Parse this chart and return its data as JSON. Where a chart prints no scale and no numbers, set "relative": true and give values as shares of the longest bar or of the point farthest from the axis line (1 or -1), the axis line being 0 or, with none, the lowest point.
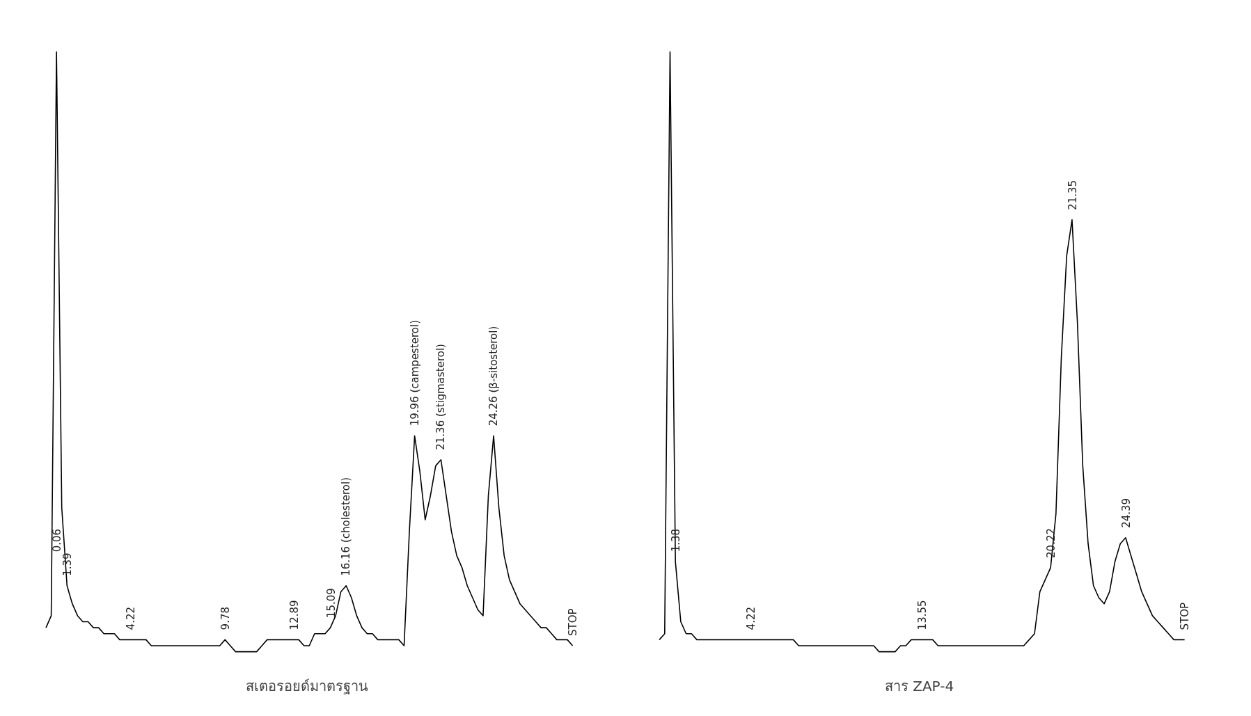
{
  "chart_data": [
    {
      "type": "line",
      "relative": true,
      "xlabel": "สเตอรอยด์มาตรฐาน",
      "annotations": [
        "0.06",
        "1.39",
        "4.22",
        "9.78",
        "12.89",
        "15.09",
        "16.16 (cholesterol)",
        "19.96 (campesterol)",
        "21.36 (stigmasterol)",
        "24.26 (β-sitosterol)",
        "STOP"
      ],
      "categories": [
        null,
        null,
        null,
        null,
        null,
        null,
        null,
        null,
        null,
        null,
        null,
        null,
        null,
        null,
        null,
        null,
        null,
        null,
        null,
        null,
        null,
        null,
        null,
        null,
        null,
        null,
        null,
        null,
        null,
        null,
        null,
        null,
        null,
        null,
        null,
        null,
        null,
        null,
        null,
        null,
        null,
        null,
        null,
        null,
        null,
        null,
        null,
        null,
        null,
        null,
        null,
        null,
        null,
        null,
        null,
        null,
        null,
        null,
        null,
        null,
        null,
        null,
        null,
        null,
        null,
        null,
        null,
        null,
        null,
        null,
        null,
        null,
        null,
        null,
        null,
        null,
        null,
        null,
        null,
        null,
        null,
        null,
        null,
        null,
        null,
        null,
        null,
        null,
        null,
        null,
        null,
        null,
        null,
        null,
        null,
        null,
        null,
        null,
        null,
        null,
        null
      ],
      "series": [
        {
          "color": "#000000",
          "values": [
            0.04,
            0.06,
            1.0,
            0.24,
            0.11,
            0.08,
            0.06,
            0.05,
            0.05,
            0.04,
            0.04,
            0.03,
            0.03,
            0.03,
            0.02,
            0.02,
            0.02,
            0.02,
            0.02,
            0.02,
            0.01,
            0.01,
            0.01,
            0.01,
            0.01,
            0.01,
            0.01,
            0.01,
            0.01,
            0.01,
            0.01,
            0.01,
            0.01,
            0.01,
            0.02,
            0.01,
            0.0,
            0.0,
            0.0,
            0.0,
            0.0,
            0.01,
            0.02,
            0.02,
            0.02,
            0.02,
            0.02,
            0.02,
            0.02,
            0.01,
            0.01,
            0.03,
            0.03,
            0.03,
            0.04,
            0.06,
            0.1,
            0.11,
            0.09,
            0.06,
            0.04,
            0.03,
            0.03,
            0.02,
            0.02,
            0.02,
            0.02,
            0.02,
            0.01,
            0.2,
            0.36,
            0.3,
            0.22,
            0.26,
            0.31,
            0.32,
            0.26,
            0.2,
            0.16,
            0.14,
            0.11,
            0.09,
            0.07,
            0.06,
            0.26,
            0.36,
            0.24,
            0.16,
            0.12,
            0.1,
            0.08,
            0.07,
            0.06,
            0.05,
            0.04,
            0.04,
            0.03,
            0.02,
            0.02,
            0.02,
            0.01
          ],
          "marker": "none"
        }
      ]
    },
    {
      "type": "line",
      "relative": true,
      "xlabel": "สาร ZAP-4",
      "annotations": [
        "1.38",
        "4.22",
        "13.55",
        "20.22",
        "21.35",
        "24.39",
        "STOP"
      ],
      "categories": [
        null,
        null,
        null,
        null,
        null,
        null,
        null,
        null,
        null,
        null,
        null,
        null,
        null,
        null,
        null,
        null,
        null,
        null,
        null,
        null,
        null,
        null,
        null,
        null,
        null,
        null,
        null,
        null,
        null,
        null,
        null,
        null,
        null,
        null,
        null,
        null,
        null,
        null,
        null,
        null,
        null,
        null,
        null,
        null,
        null,
        null,
        null,
        null,
        null,
        null,
        null,
        null,
        null,
        null,
        null,
        null,
        null,
        null,
        null,
        null,
        null,
        null,
        null,
        null,
        null,
        null,
        null,
        null,
        null,
        null,
        null,
        null,
        null,
        null,
        null,
        null,
        null,
        null,
        null,
        null,
        null,
        null,
        null,
        null,
        null,
        null,
        null,
        null,
        null,
        null,
        null,
        null,
        null,
        null,
        null,
        null,
        null,
        null,
        null
      ],
      "series": [
        {
          "color": "#000000",
          "values": [
            0.02,
            0.03,
            1.0,
            0.15,
            0.05,
            0.03,
            0.03,
            0.02,
            0.02,
            0.02,
            0.02,
            0.02,
            0.02,
            0.02,
            0.02,
            0.02,
            0.02,
            0.02,
            0.02,
            0.02,
            0.02,
            0.02,
            0.02,
            0.02,
            0.02,
            0.02,
            0.01,
            0.01,
            0.01,
            0.01,
            0.01,
            0.01,
            0.01,
            0.01,
            0.01,
            0.01,
            0.01,
            0.01,
            0.01,
            0.01,
            0.01,
            0.0,
            0.0,
            0.0,
            0.0,
            0.01,
            0.01,
            0.02,
            0.02,
            0.02,
            0.02,
            0.02,
            0.01,
            0.01,
            0.01,
            0.01,
            0.01,
            0.01,
            0.01,
            0.01,
            0.01,
            0.01,
            0.01,
            0.01,
            0.01,
            0.01,
            0.01,
            0.01,
            0.01,
            0.02,
            0.03,
            0.1,
            0.12,
            0.14,
            0.23,
            0.49,
            0.66,
            0.72,
            0.55,
            0.31,
            0.18,
            0.11,
            0.09,
            0.08,
            0.1,
            0.15,
            0.18,
            0.19,
            0.16,
            0.13,
            0.1,
            0.08,
            0.06,
            0.05,
            0.04,
            0.03,
            0.02,
            0.02,
            0.02
          ],
          "marker": "none"
        }
      ]
    }
  ]
}
